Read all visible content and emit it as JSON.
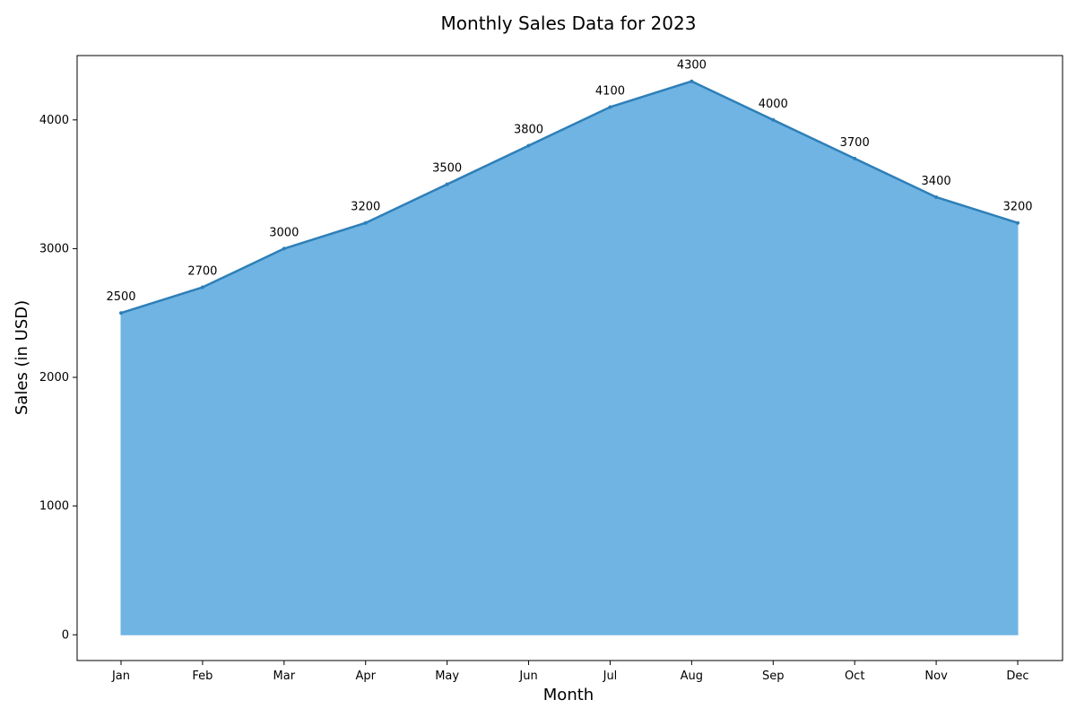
{
  "chart_data": {
    "type": "area",
    "title": "Monthly Sales Data for 2023",
    "xlabel": "Month",
    "ylabel": "Sales (in USD)",
    "categories": [
      "Jan",
      "Feb",
      "Mar",
      "Apr",
      "May",
      "Jun",
      "Jul",
      "Aug",
      "Sep",
      "Oct",
      "Nov",
      "Dec"
    ],
    "values": [
      2500,
      2700,
      3000,
      3200,
      3500,
      3800,
      4100,
      4300,
      4000,
      3700,
      3400,
      3200
    ],
    "ylim": [
      -200,
      4500
    ],
    "yticks": [
      "0",
      "1000",
      "2000",
      "3000",
      "4000"
    ],
    "grid": false,
    "colors": {
      "fill": "#6fb4e3",
      "line": "#2e7fb8"
    }
  }
}
